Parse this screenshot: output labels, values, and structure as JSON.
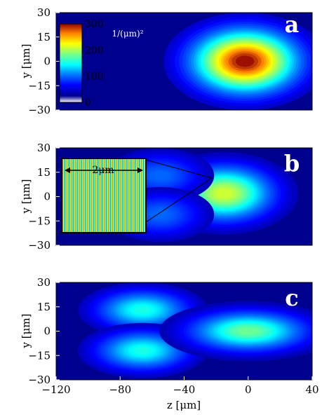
{
  "chart_data": [
    {
      "type": "heatmap",
      "panel_label": "a",
      "xlim": [
        -120,
        40
      ],
      "ylim": [
        -30,
        30
      ],
      "x_ticks": [],
      "y_ticks": [
        30,
        15,
        0,
        -15,
        -30
      ],
      "ylabel": "y [μm]",
      "xlabel": "",
      "blobs": [
        {
          "z": -2,
          "y": 0,
          "sigma_z": 22,
          "sigma_y": 13,
          "amp": 300
        }
      ],
      "colorbar": {
        "ticks": [
          300,
          200,
          100,
          0
        ],
        "unit": "1/(μm)²",
        "range": [
          0,
          300
        ]
      }
    },
    {
      "type": "heatmap",
      "panel_label": "b",
      "xlim": [
        -120,
        40
      ],
      "ylim": [
        -30,
        30
      ],
      "x_ticks": [],
      "y_ticks": [
        30,
        15,
        0,
        -15,
        -30
      ],
      "ylabel": "y [μm]",
      "xlabel": "",
      "blobs": [
        {
          "z": -15,
          "y": 2,
          "sigma_z": 20,
          "sigma_y": 11,
          "amp": 210
        },
        {
          "z": -55,
          "y": 13,
          "sigma_z": 18,
          "sigma_y": 9,
          "amp": 80
        },
        {
          "z": -55,
          "y": -11,
          "sigma_z": 18,
          "sigma_y": 9,
          "amp": 80
        }
      ],
      "inset": {
        "label": "2μm",
        "fringe_count": 20
      }
    },
    {
      "type": "heatmap",
      "panel_label": "c",
      "xlim": [
        -120,
        40
      ],
      "ylim": [
        -30,
        30
      ],
      "x_ticks": [
        -120,
        -80,
        -40,
        0,
        40
      ],
      "y_ticks": [
        30,
        15,
        0,
        -15,
        -30
      ],
      "ylabel": "y [μm]",
      "xlabel": "z [μm]",
      "blobs": [
        {
          "z": -66,
          "y": 13,
          "sigma_z": 19,
          "sigma_y": 8,
          "amp": 145
        },
        {
          "z": -66,
          "y": -12,
          "sigma_z": 19,
          "sigma_y": 8,
          "amp": 145
        },
        {
          "z": 0,
          "y": 0,
          "sigma_z": 24,
          "sigma_y": 8,
          "amp": 175
        }
      ]
    }
  ]
}
